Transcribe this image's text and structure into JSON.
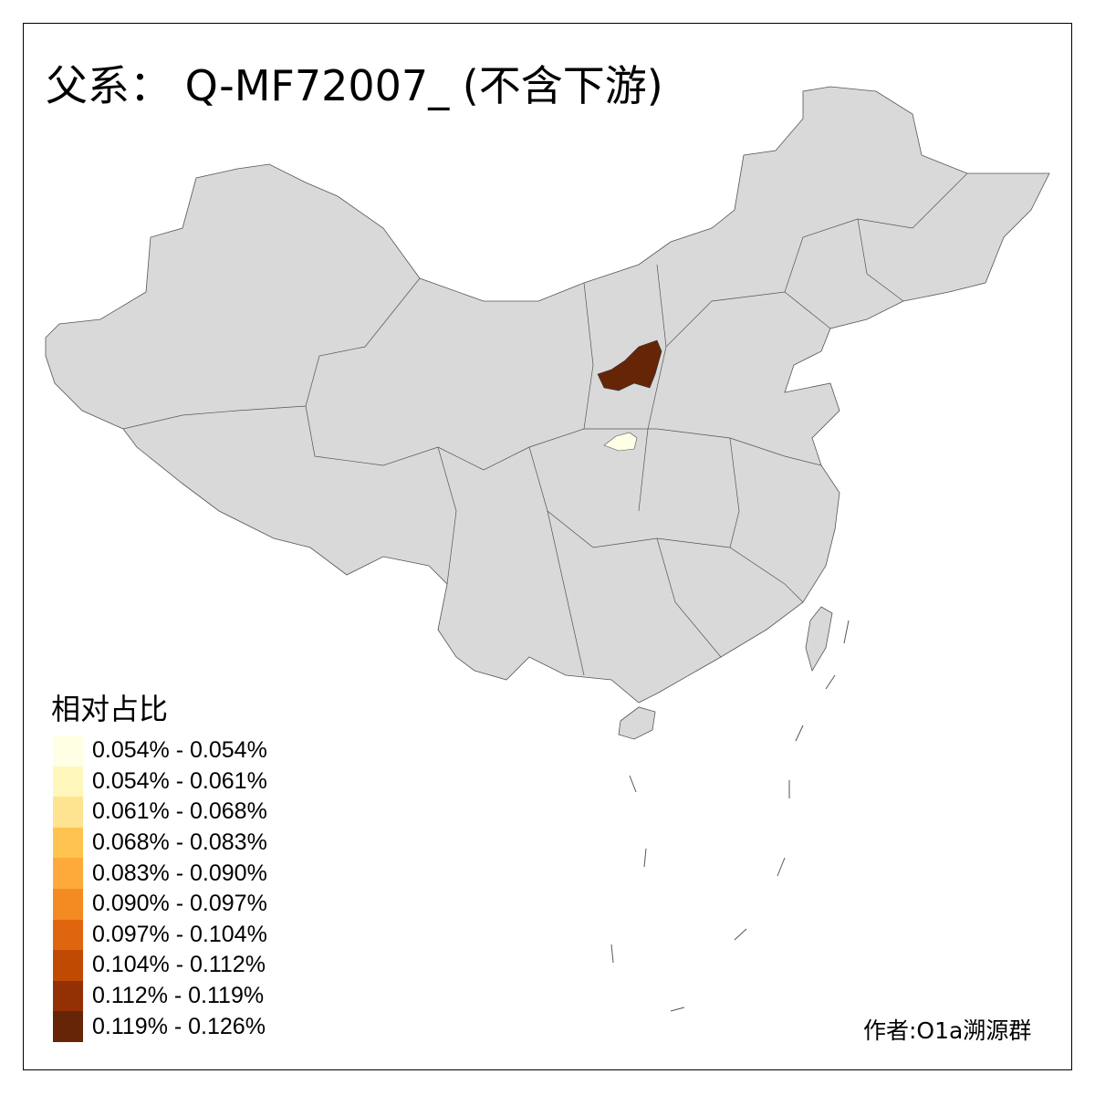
{
  "title": "父系： Q-MF72007_ (不含下游)",
  "legend": {
    "title": "相对占比",
    "items": [
      {
        "label": "0.054% - 0.054%",
        "color": "#FFFFE5"
      },
      {
        "label": "0.054% - 0.061%",
        "color": "#FFF7BC"
      },
      {
        "label": "0.061% - 0.068%",
        "color": "#FEE391"
      },
      {
        "label": "0.068% - 0.083%",
        "color": "#FEC44F"
      },
      {
        "label": "0.083% - 0.090%",
        "color": "#FEAA3A"
      },
      {
        "label": "0.090% - 0.097%",
        "color": "#F38A22"
      },
      {
        "label": "0.097% - 0.104%",
        "color": "#E0650F"
      },
      {
        "label": "0.104% - 0.112%",
        "color": "#C04A02"
      },
      {
        "label": "0.112% - 0.119%",
        "color": "#933104"
      },
      {
        "label": "0.119% - 0.126%",
        "color": "#662506"
      }
    ]
  },
  "map": {
    "base_color": "#D9D9D9",
    "border_color": "#555555",
    "highlighted_regions": [
      {
        "class": "0.119% - 0.126%",
        "color": "#662506"
      },
      {
        "class": "0.054% - 0.054%",
        "color": "#FFFFE5"
      }
    ]
  },
  "author": "作者:O1a溯源群"
}
